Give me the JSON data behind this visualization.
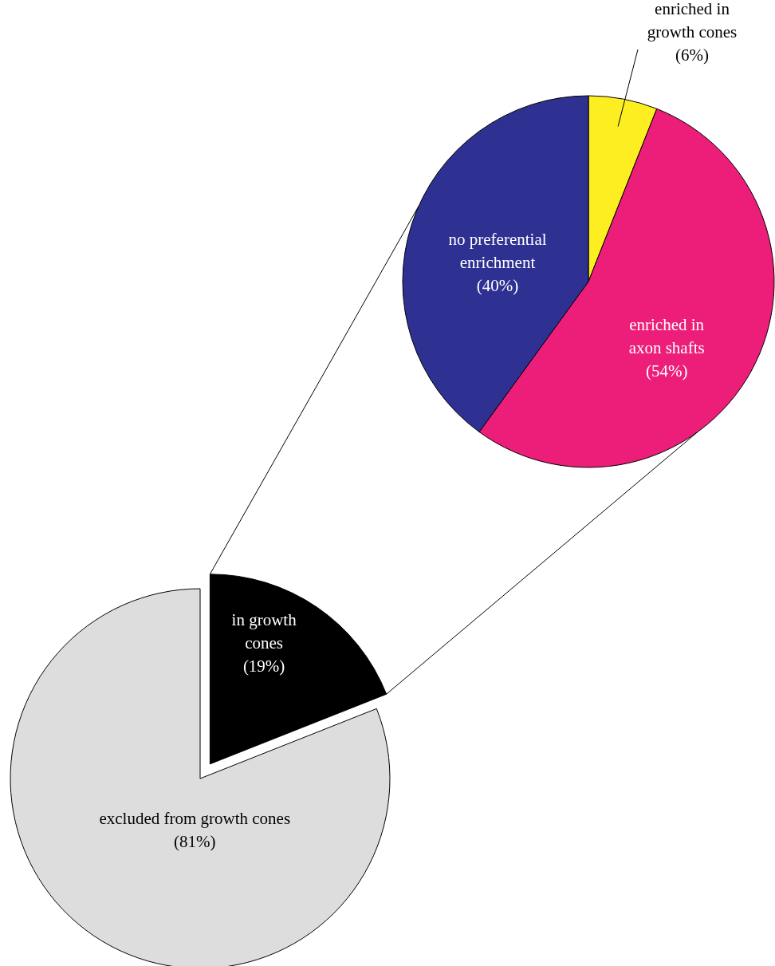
{
  "chart_data": [
    {
      "type": "pie",
      "categories": [
        "in growth cones",
        "excluded from growth cones"
      ],
      "values": [
        19,
        81
      ],
      "colors": [
        "#000000",
        "#dddddd"
      ],
      "value_labels": [
        "(19%)",
        "(81%)"
      ]
    },
    {
      "type": "pie",
      "categories": [
        "enriched in growth cones",
        "enriched in axon shafts",
        "no preferential enrichment"
      ],
      "values": [
        6,
        54,
        40
      ],
      "colors": [
        "#fcee21",
        "#ec1e79",
        "#2e3192"
      ],
      "value_labels": [
        "(6%)",
        "(54%)",
        "(40%)"
      ]
    }
  ]
}
